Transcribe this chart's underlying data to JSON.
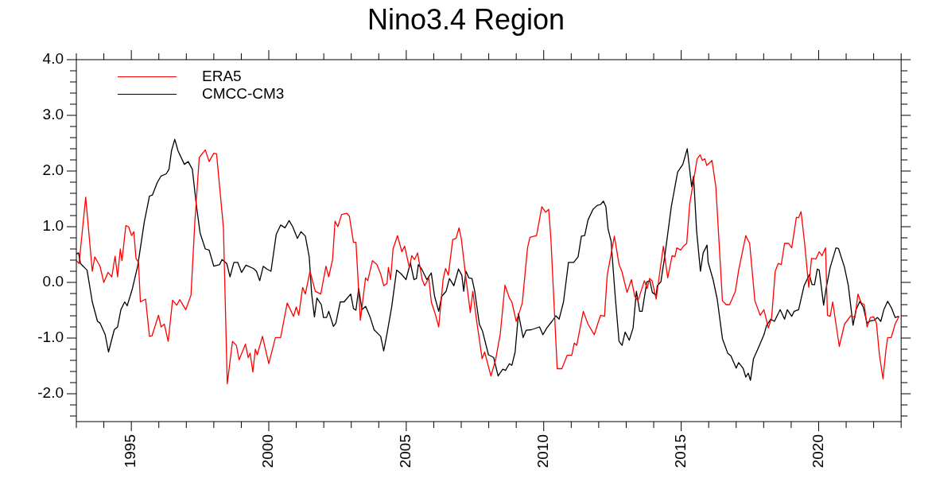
{
  "chart_data": {
    "type": "line",
    "title": "Nino3.4 Region",
    "legend": "top left",
    "marker": "none",
    "line_style": "solid",
    "xlim": [
      1993,
      2023
    ],
    "ylim": [
      -2.5,
      4
    ],
    "xticks": [
      {
        "value": 1993,
        "label": null
      },
      {
        "value": 1994,
        "label": null
      },
      1995,
      {
        "value": 1996,
        "label": null
      },
      {
        "value": 1997,
        "label": null
      },
      {
        "value": 1998,
        "label": null
      },
      {
        "value": 1999,
        "label": null
      },
      2000,
      {
        "value": 2001,
        "label": null
      },
      {
        "value": 2002,
        "label": null
      },
      {
        "value": 2003,
        "label": null
      },
      {
        "value": 2004,
        "label": null
      },
      2005,
      {
        "value": 2006,
        "label": null
      },
      {
        "value": 2007,
        "label": null
      },
      {
        "value": 2008,
        "label": null
      },
      {
        "value": 2009,
        "label": null
      },
      2010,
      {
        "value": 2011,
        "label": null
      },
      {
        "value": 2012,
        "label": null
      },
      {
        "value": 2013,
        "label": null
      },
      {
        "value": 2014,
        "label": null
      },
      2015,
      {
        "value": 2016,
        "label": null
      },
      {
        "value": 2017,
        "label": null
      },
      {
        "value": 2018,
        "label": null
      },
      {
        "value": 2019,
        "label": null
      },
      2020,
      {
        "value": 2021,
        "label": null
      },
      {
        "value": 2022,
        "label": null
      },
      {
        "value": 2023,
        "label": null
      }
    ],
    "yticks": [
      {
        "value": -2.4,
        "label": null
      },
      {
        "value": -2.2,
        "label": null
      },
      {
        "value": -2,
        "label": "-2.0"
      },
      {
        "value": -1.8,
        "label": null
      },
      {
        "value": -1.6,
        "label": null
      },
      {
        "value": -1.4,
        "label": null
      },
      {
        "value": -1.2,
        "label": null
      },
      {
        "value": -1,
        "label": "-1.0"
      },
      {
        "value": -0.8,
        "label": null
      },
      {
        "value": -0.6,
        "label": null
      },
      {
        "value": -0.4,
        "label": null
      },
      {
        "value": -0.2,
        "label": null
      },
      {
        "value": 0,
        "label": "0.0"
      },
      {
        "value": 0.2,
        "label": null
      },
      {
        "value": 0.4,
        "label": null
      },
      {
        "value": 0.6,
        "label": null
      },
      {
        "value": 0.8,
        "label": null
      },
      {
        "value": 1,
        "label": "1.0"
      },
      {
        "value": 1.2,
        "label": null
      },
      {
        "value": 1.4,
        "label": null
      },
      {
        "value": 1.6,
        "label": null
      },
      {
        "value": 1.8,
        "label": null
      },
      {
        "value": 2,
        "label": "2.0"
      },
      {
        "value": 2.2,
        "label": null
      },
      {
        "value": 2.4,
        "label": null
      },
      {
        "value": 2.6,
        "label": null
      },
      {
        "value": 2.8,
        "label": null
      },
      {
        "value": 3,
        "label": "3.0"
      },
      {
        "value": 3.2,
        "label": null
      },
      {
        "value": 3.4,
        "label": null
      },
      {
        "value": 3.6,
        "label": null
      },
      {
        "value": 3.8,
        "label": null
      },
      {
        "value": 4,
        "label": "4.0"
      }
    ],
    "series": [
      {
        "name": "ERA5",
        "color": "#ff0000",
        "x": [
          1993.0,
          1993.1,
          1993.34,
          1993.58,
          1993.67,
          1993.86,
          1994.0,
          1994.15,
          1994.29,
          1994.41,
          1994.5,
          1994.6,
          1994.66,
          1994.8,
          1994.9,
          1995.01,
          1995.09,
          1995.17,
          1995.26,
          1995.33,
          1995.52,
          1995.66,
          1995.75,
          1995.99,
          1996.08,
          1996.2,
          1996.34,
          1996.5,
          1996.65,
          1996.76,
          1996.98,
          1997.17,
          1997.31,
          1997.47,
          1997.69,
          1997.83,
          1998.0,
          1998.1,
          1998.35,
          1998.49,
          1998.68,
          1998.82,
          1998.92,
          1999.15,
          1999.25,
          1999.32,
          1999.42,
          1999.51,
          1999.58,
          1999.77,
          2000.0,
          2000.24,
          2000.43,
          2000.67,
          2000.9,
          2001.0,
          2001.09,
          2001.23,
          2001.33,
          2001.5,
          2001.69,
          2001.89,
          2002.08,
          2002.18,
          2002.32,
          2002.41,
          2002.51,
          2002.65,
          2002.84,
          2002.93,
          2003.08,
          2003.17,
          2003.33,
          2003.52,
          2003.6,
          2003.77,
          2003.93,
          2004.07,
          2004.18,
          2004.3,
          2004.35,
          2004.43,
          2004.52,
          2004.68,
          2004.84,
          2004.94,
          2005.11,
          2005.2,
          2005.3,
          2005.41,
          2005.58,
          2005.67,
          2005.82,
          2005.91,
          2006.05,
          2006.18,
          2006.34,
          2006.43,
          2006.53,
          2006.69,
          2006.81,
          2006.92,
          2007.0,
          2007.17,
          2007.33,
          2007.42,
          2007.55,
          2007.76,
          2007.85,
          2008.08,
          2008.25,
          2008.42,
          2008.59,
          2008.75,
          2008.84,
          2009.0,
          2009.12,
          2009.22,
          2009.41,
          2009.5,
          2009.74,
          2009.93,
          2010.07,
          2010.18,
          2010.26,
          2010.49,
          2010.66,
          2010.85,
          2011.02,
          2011.11,
          2011.2,
          2011.44,
          2011.61,
          2011.84,
          2011.96,
          2012.07,
          2012.21,
          2012.31,
          2012.57,
          2012.74,
          2012.84,
          2013.03,
          2013.19,
          2013.31,
          2013.43,
          2013.66,
          2013.76,
          2013.85,
          2013.94,
          2014.09,
          2014.35,
          2014.51,
          2014.67,
          2014.77,
          2014.84,
          2014.98,
          2015.08,
          2015.2,
          2015.31,
          2015.58,
          2015.69,
          2015.77,
          2015.86,
          2015.93,
          2016.12,
          2016.26,
          2016.5,
          2016.64,
          2016.76,
          2016.97,
          2017.09,
          2017.35,
          2017.49,
          2017.68,
          2017.87,
          2018.01,
          2018.17,
          2018.29,
          2018.42,
          2018.53,
          2018.64,
          2018.76,
          2018.91,
          2019.02,
          2019.19,
          2019.27,
          2019.36,
          2019.49,
          2019.64,
          2019.74,
          2019.9,
          2020.02,
          2020.12,
          2020.25,
          2020.32,
          2020.42,
          2020.51,
          2020.75,
          2020.94,
          2021.17,
          2021.32,
          2021.43,
          2021.55,
          2021.66,
          2021.76,
          2021.88,
          2022.0,
          2022.1,
          2022.21,
          2022.34,
          2022.45,
          2022.51,
          2022.64,
          2022.78,
          2022.92
        ],
        "values": [
          0.39,
          0.34,
          1.53,
          0.2,
          0.46,
          0.29,
          0.0,
          0.18,
          0.1,
          0.47,
          0.1,
          0.6,
          0.39,
          1.02,
          1.0,
          0.84,
          0.91,
          0.43,
          0.36,
          -0.35,
          -0.3,
          -0.97,
          -0.96,
          -0.59,
          -0.8,
          -0.75,
          -1.06,
          -0.32,
          -0.41,
          -0.31,
          -0.49,
          -0.23,
          1.08,
          2.24,
          2.38,
          2.17,
          2.32,
          2.31,
          0.98,
          -1.82,
          -1.06,
          -1.13,
          -1.39,
          -1.11,
          -1.35,
          -1.27,
          -1.61,
          -1.2,
          -1.3,
          -0.97,
          -1.46,
          -0.99,
          -0.99,
          -0.37,
          -0.61,
          -0.44,
          -0.59,
          -0.09,
          -0.21,
          0.2,
          -0.16,
          -0.21,
          0.29,
          0.1,
          0.41,
          1.1,
          1.0,
          1.22,
          1.24,
          1.19,
          0.72,
          0.72,
          -0.68,
          0.08,
          0.03,
          0.39,
          0.32,
          0.15,
          -0.06,
          -0.02,
          0.27,
          0.05,
          0.6,
          0.84,
          0.55,
          0.65,
          0.27,
          0.48,
          0.41,
          0.53,
          0.05,
          -0.06,
          0.08,
          -0.35,
          -0.56,
          -0.8,
          0.05,
          0.25,
          0.13,
          0.77,
          0.79,
          0.98,
          0.79,
          0.08,
          -0.54,
          -0.16,
          -0.66,
          -1.37,
          -1.25,
          -1.68,
          -1.39,
          -0.92,
          -0.05,
          -0.28,
          -0.35,
          -0.7,
          -0.53,
          -0.37,
          0.62,
          0.81,
          0.84,
          1.36,
          1.26,
          1.31,
          0.79,
          -1.55,
          -1.55,
          -1.31,
          -1.31,
          -1.09,
          -1.13,
          -0.52,
          -0.75,
          -0.94,
          -0.75,
          -0.59,
          -0.61,
          0.13,
          0.83,
          0.32,
          0.2,
          -0.18,
          0.05,
          -0.25,
          -0.33,
          0.03,
          -0.11,
          0.07,
          0.03,
          -0.3,
          0.65,
          0.08,
          0.48,
          0.46,
          0.62,
          0.58,
          0.65,
          0.7,
          1.41,
          2.22,
          2.29,
          2.19,
          2.22,
          2.1,
          2.19,
          1.72,
          -0.33,
          -0.4,
          -0.4,
          -0.16,
          0.22,
          0.84,
          0.7,
          -0.33,
          -0.59,
          -0.49,
          -0.82,
          -0.63,
          0.2,
          0.34,
          0.32,
          0.7,
          0.7,
          0.62,
          1.17,
          1.16,
          1.27,
          0.7,
          -0.09,
          0.43,
          0.42,
          0.55,
          0.48,
          0.62,
          -0.59,
          -0.61,
          -0.35,
          -1.15,
          -0.75,
          -0.6,
          -0.63,
          -0.21,
          -0.37,
          -0.4,
          -0.8,
          -0.63,
          -0.62,
          -0.73,
          -1.3,
          -1.73,
          -1.2,
          -0.99,
          -0.99,
          -0.75,
          -0.61
        ]
      },
      {
        "name": "CMCC-CM3",
        "color": "#000000",
        "x": [
          1993.0,
          1993.08,
          1993.15,
          1993.39,
          1993.58,
          1993.77,
          1993.86,
          1994.05,
          1994.17,
          1994.38,
          1994.5,
          1994.62,
          1994.76,
          1994.85,
          1995.04,
          1995.23,
          1995.47,
          1995.66,
          1995.77,
          1995.94,
          1996.08,
          1996.27,
          1996.37,
          1996.46,
          1996.58,
          1996.7,
          1996.93,
          1997.07,
          1997.22,
          1997.36,
          1997.5,
          1997.69,
          1997.83,
          1998.0,
          1998.21,
          1998.3,
          1998.47,
          1998.59,
          1998.73,
          1998.87,
          1999.01,
          1999.17,
          1999.44,
          1999.55,
          1999.67,
          1999.8,
          1999.93,
          2000.08,
          2000.27,
          2000.43,
          2000.59,
          2000.74,
          2000.87,
          2001.04,
          2001.17,
          2001.33,
          2001.47,
          2001.56,
          2001.66,
          2001.75,
          2001.91,
          2001.99,
          2002.1,
          2002.18,
          2002.35,
          2002.44,
          2002.6,
          2002.74,
          2002.98,
          2003.08,
          2003.17,
          2003.27,
          2003.39,
          2003.52,
          2003.69,
          2003.83,
          2004.07,
          2004.18,
          2004.3,
          2004.47,
          2004.65,
          2004.82,
          2004.99,
          2005.15,
          2005.28,
          2005.37,
          2005.44,
          2005.56,
          2005.75,
          2005.91,
          2006.03,
          2006.18,
          2006.29,
          2006.45,
          2006.57,
          2006.73,
          2006.9,
          2007.02,
          2007.09,
          2007.17,
          2007.28,
          2007.39,
          2007.49,
          2007.66,
          2007.77,
          2007.99,
          2008.18,
          2008.34,
          2008.51,
          2008.61,
          2008.75,
          2008.84,
          2008.96,
          2009.08,
          2009.25,
          2009.36,
          2009.55,
          2009.85,
          2009.97,
          2010.11,
          2010.3,
          2010.44,
          2010.56,
          2010.72,
          2010.9,
          2011.09,
          2011.25,
          2011.37,
          2011.49,
          2011.61,
          2011.79,
          2011.94,
          2012.07,
          2012.17,
          2012.26,
          2012.34,
          2012.45,
          2012.6,
          2012.74,
          2012.85,
          2012.96,
          2013.11,
          2013.25,
          2013.37,
          2013.49,
          2013.58,
          2013.75,
          2013.86,
          2013.95,
          2014.09,
          2014.13,
          2014.26,
          2014.4,
          2014.64,
          2014.87,
          2015.06,
          2015.22,
          2015.38,
          2015.45,
          2015.56,
          2015.7,
          2015.8,
          2015.94,
          2015.98,
          2016.16,
          2016.31,
          2016.5,
          2016.69,
          2016.81,
          2017.0,
          2017.09,
          2017.25,
          2017.35,
          2017.44,
          2017.52,
          2017.63,
          2017.82,
          2018.01,
          2018.1,
          2018.26,
          2018.39,
          2018.6,
          2018.76,
          2018.86,
          2019.02,
          2019.11,
          2019.27,
          2019.47,
          2019.66,
          2019.76,
          2019.85,
          2019.95,
          2020.02,
          2020.18,
          2020.27,
          2020.42,
          2020.63,
          2020.72,
          2020.94,
          2021.08,
          2021.25,
          2021.36,
          2021.5,
          2021.62,
          2021.76,
          2021.88,
          2022.02,
          2022.14,
          2022.26,
          2022.37,
          2022.51,
          2022.66,
          2022.78,
          2022.92
        ],
        "values": [
          0.51,
          0.53,
          0.34,
          0.22,
          -0.35,
          -0.7,
          -0.73,
          -0.94,
          -1.25,
          -0.85,
          -0.8,
          -0.49,
          -0.35,
          -0.42,
          -0.11,
          0.29,
          1.08,
          1.55,
          1.57,
          1.79,
          1.91,
          1.95,
          2.03,
          2.36,
          2.57,
          2.36,
          2.12,
          2.17,
          2.03,
          1.41,
          0.89,
          0.6,
          0.58,
          0.29,
          0.32,
          0.41,
          0.34,
          0.1,
          0.36,
          0.36,
          0.18,
          0.31,
          0.25,
          0.2,
          0.03,
          0.29,
          0.24,
          0.2,
          0.86,
          1.03,
          0.98,
          1.11,
          1.0,
          0.79,
          0.91,
          0.83,
          0.46,
          -0.21,
          -0.62,
          -0.28,
          -0.4,
          -0.63,
          -0.63,
          -0.52,
          -0.79,
          -0.73,
          -0.35,
          -0.35,
          -0.21,
          -0.47,
          -0.5,
          -0.11,
          -0.49,
          -0.43,
          -0.63,
          -0.85,
          -0.97,
          -1.23,
          -0.92,
          -0.44,
          0.22,
          0.15,
          0.05,
          0.35,
          0.05,
          0.07,
          0.32,
          0.24,
          0.05,
          0.17,
          -0.25,
          -0.52,
          -0.25,
          -0.16,
          0.07,
          -0.06,
          0.24,
          0.13,
          -0.16,
          0.2,
          0.08,
          0.07,
          -0.16,
          -0.75,
          -0.87,
          -1.3,
          -1.35,
          -1.68,
          -1.56,
          -1.58,
          -1.46,
          -1.49,
          -1.25,
          -0.56,
          -0.99,
          -0.86,
          -0.85,
          -0.8,
          -0.94,
          -0.82,
          -0.7,
          -0.6,
          -0.66,
          -0.35,
          0.36,
          0.36,
          0.46,
          0.83,
          0.84,
          1.12,
          1.31,
          1.38,
          1.4,
          1.46,
          1.36,
          0.96,
          0.74,
          -0.25,
          -1.06,
          -1.13,
          -0.89,
          -1.04,
          -0.82,
          -0.16,
          -0.52,
          -0.52,
          0.01,
          0.03,
          -0.18,
          -0.23,
          -0.06,
          0.01,
          0.46,
          1.36,
          1.98,
          2.12,
          2.4,
          1.72,
          1.91,
          0.93,
          0.2,
          0.53,
          0.67,
          0.36,
          0.05,
          -0.3,
          -1.01,
          -1.27,
          -1.32,
          -1.54,
          -1.44,
          -1.54,
          -1.7,
          -1.63,
          -1.76,
          -1.37,
          -1.16,
          -0.94,
          -0.78,
          -0.66,
          -0.7,
          -0.49,
          -0.66,
          -0.49,
          -0.61,
          -0.52,
          -0.49,
          -0.06,
          0.14,
          -0.04,
          -0.04,
          0.24,
          0.22,
          -0.41,
          -0.11,
          0.27,
          0.62,
          0.61,
          0.27,
          -0.06,
          -0.77,
          -0.49,
          -0.34,
          -0.44,
          -0.73,
          -0.69,
          -0.68,
          -0.63,
          -0.7,
          -0.49,
          -0.34,
          -0.47,
          -0.63,
          -0.61
        ]
      }
    ]
  }
}
